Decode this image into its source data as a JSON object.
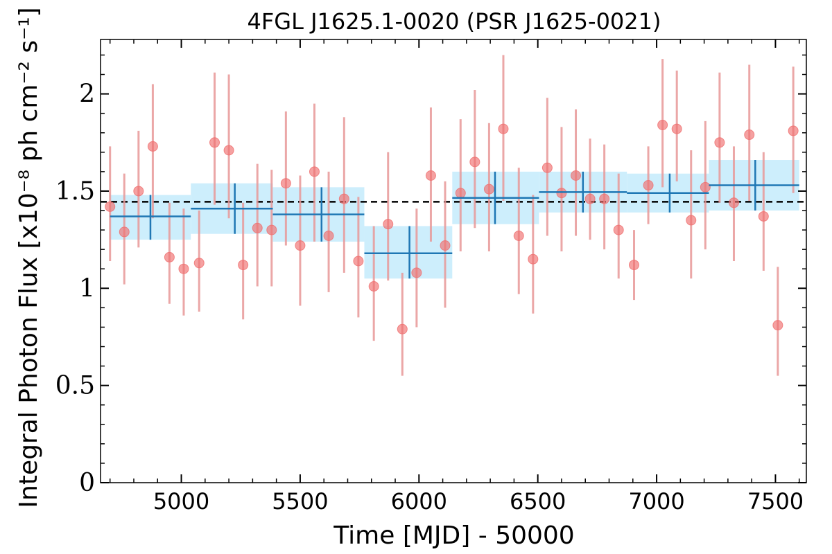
{
  "chart_data": {
    "type": "scatter",
    "title": "4FGL J1625.1-0020 (PSR J1625-0021)",
    "xlabel": "Time [MJD] - 50000",
    "ylabel": "Integral Photon Flux [x10⁻⁸ ph cm⁻² s⁻¹]",
    "xlim": [
      4660,
      7630
    ],
    "ylim": [
      0,
      2.28
    ],
    "xticks": [
      5000,
      5500,
      6000,
      6500,
      7000,
      7500
    ],
    "xtick_labels": [
      "5000",
      "5500",
      "6000",
      "6500",
      "7000",
      "7500"
    ],
    "yticks": [
      0,
      0.5,
      1,
      1.5,
      2
    ],
    "ytick_labels": [
      "0",
      "0.5",
      "1",
      "1.5",
      "2"
    ],
    "grid": false,
    "mean_flux": 1.445,
    "colors": {
      "points": "#ef6f6f",
      "point_errors": "#e89898",
      "bins": "#1f77b4",
      "bin_band": "#cdeefc",
      "mean_line": "#000000"
    },
    "series": [
      {
        "kind": "points",
        "x": [
          4700,
          4760,
          4820,
          4880,
          4950,
          5010,
          5075,
          5140,
          5200,
          5260,
          5320,
          5380,
          5440,
          5500,
          5560,
          5620,
          5685,
          5745,
          5810,
          5870,
          5930,
          5990,
          6050,
          6110,
          6175,
          6235,
          6295,
          6355,
          6420,
          6480,
          6540,
          6600,
          6660,
          6720,
          6780,
          6840,
          6905,
          6965,
          7025,
          7085,
          7145,
          7205,
          7265,
          7325,
          7390,
          7450,
          7510,
          7575
        ],
        "y": [
          1.42,
          1.29,
          1.5,
          1.73,
          1.16,
          1.1,
          1.13,
          1.75,
          1.71,
          1.12,
          1.31,
          1.3,
          1.54,
          1.22,
          1.6,
          1.27,
          1.46,
          1.14,
          1.01,
          1.33,
          0.79,
          1.08,
          1.58,
          1.22,
          1.49,
          1.65,
          1.51,
          1.82,
          1.27,
          1.15,
          1.62,
          1.49,
          1.58,
          1.46,
          1.46,
          1.3,
          1.12,
          1.53,
          1.84,
          1.82,
          1.35,
          1.52,
          1.75,
          1.44,
          1.79,
          1.37,
          0.81,
          1.81
        ],
        "y_low": [
          1.14,
          1.02,
          1.21,
          1.36,
          0.92,
          0.86,
          0.88,
          1.43,
          1.36,
          0.84,
          1.01,
          1.01,
          1.22,
          0.91,
          1.24,
          0.98,
          1.08,
          0.85,
          0.73,
          1.04,
          0.55,
          0.8,
          1.24,
          0.9,
          1.19,
          1.31,
          1.19,
          1.45,
          0.97,
          0.87,
          1.27,
          1.19,
          1.27,
          1.25,
          1.2,
          1.05,
          0.94,
          1.33,
          1.52,
          1.55,
          1.05,
          1.2,
          1.44,
          1.14,
          1.45,
          1.09,
          0.55,
          1.49
        ],
        "y_high": [
          1.73,
          1.59,
          1.81,
          2.05,
          1.44,
          1.41,
          1.4,
          2.11,
          2.1,
          1.44,
          1.64,
          1.61,
          1.91,
          1.58,
          1.95,
          1.6,
          1.88,
          1.47,
          1.32,
          1.7,
          1.08,
          1.41,
          1.93,
          1.55,
          1.87,
          2.02,
          1.85,
          2.2,
          1.62,
          1.48,
          1.98,
          1.83,
          1.92,
          1.77,
          1.74,
          1.59,
          1.3,
          1.73,
          2.18,
          2.12,
          1.71,
          1.86,
          2.11,
          1.73,
          2.15,
          1.7,
          1.11,
          2.14
        ]
      },
      {
        "kind": "bins",
        "x_start": [
          4700,
          5040,
          5385,
          5770,
          6140,
          6505,
          6875,
          7220
        ],
        "x_end": [
          5040,
          5385,
          5770,
          6140,
          6505,
          6875,
          7220,
          7600
        ],
        "x_center": [
          4870,
          5225,
          5590,
          5960,
          6320,
          6690,
          7055,
          7415
        ],
        "y": [
          1.37,
          1.41,
          1.38,
          1.18,
          1.465,
          1.495,
          1.49,
          1.53
        ],
        "y_low": [
          1.25,
          1.28,
          1.24,
          1.05,
          1.33,
          1.39,
          1.39,
          1.4
        ],
        "y_high": [
          1.48,
          1.54,
          1.52,
          1.32,
          1.6,
          1.6,
          1.59,
          1.66
        ]
      }
    ]
  }
}
